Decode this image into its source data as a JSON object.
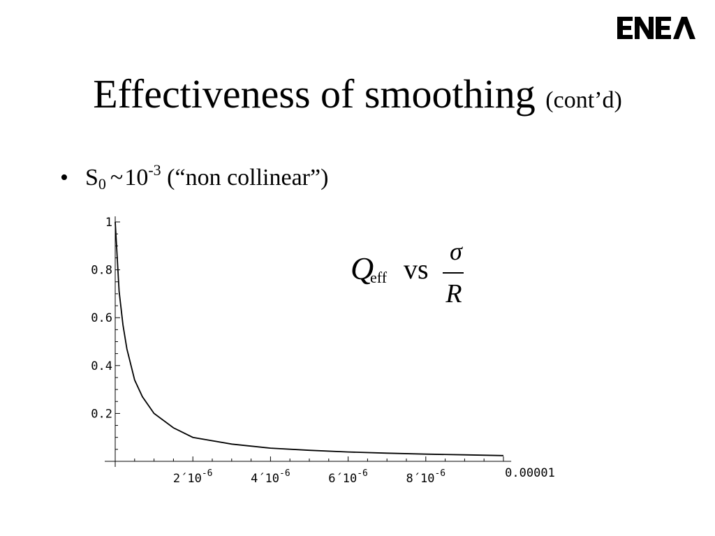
{
  "slide": {
    "title_main": "Effectiveness of smoothing",
    "title_suffix": "(cont’d)",
    "bullet": {
      "marker": "•",
      "s": "S",
      "s_sub": "0",
      "tilde": "~",
      "base": "10",
      "exponent": "-3",
      "note": "(“non collinear”)"
    },
    "formula": {
      "q": "Q",
      "q_sub": "eff",
      "vs": "vs",
      "numerator": "σ",
      "denominator": "R"
    },
    "logo_text": "ENEA"
  },
  "chart_data": {
    "type": "line",
    "x_ticks": [
      {
        "value": 2e-06,
        "mantissa": "2",
        "times": "´",
        "base": "10",
        "exp": "-6"
      },
      {
        "value": 4e-06,
        "mantissa": "4",
        "times": "´",
        "base": "10",
        "exp": "-6"
      },
      {
        "value": 6e-06,
        "mantissa": "6",
        "times": "´",
        "base": "10",
        "exp": "-6"
      },
      {
        "value": 8e-06,
        "mantissa": "8",
        "times": "´",
        "base": "10",
        "exp": "-6"
      },
      {
        "value": 1e-05,
        "label": "0.00001"
      }
    ],
    "y_ticks": [
      {
        "value": 0.2,
        "label": "0.2"
      },
      {
        "value": 0.4,
        "label": "0.4"
      },
      {
        "value": 0.6,
        "label": "0.6"
      },
      {
        "value": 0.8,
        "label": "0.8"
      },
      {
        "value": 1.0,
        "label": "1"
      }
    ],
    "xlim": [
      0,
      1.02e-05
    ],
    "ylim": [
      0,
      1.0
    ],
    "grid": false,
    "series": [
      {
        "x": [
          0.0,
          1e-07,
          2e-07,
          3e-07,
          5e-07,
          7e-07,
          1e-06,
          1.5e-06,
          2e-06,
          3e-06,
          4e-06,
          5e-06,
          6e-06,
          7e-06,
          8e-06,
          9e-06,
          1e-05
        ],
        "y": [
          1.0,
          0.71,
          0.57,
          0.47,
          0.34,
          0.27,
          0.2,
          0.14,
          0.1,
          0.072,
          0.055,
          0.046,
          0.039,
          0.034,
          0.03,
          0.027,
          0.024
        ]
      }
    ]
  }
}
